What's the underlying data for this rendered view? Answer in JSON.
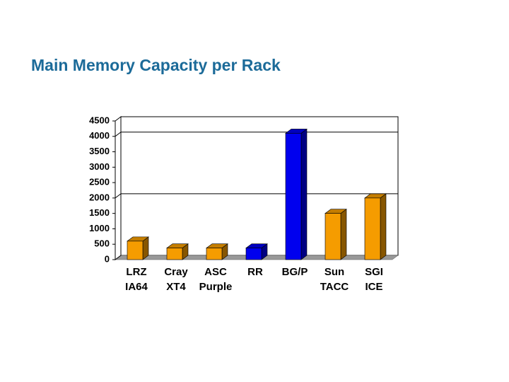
{
  "chart_data": {
    "type": "bar3d",
    "title": "Main Memory Capacity per Rack",
    "categories": [
      [
        "LRZ",
        "IA64"
      ],
      [
        "Cray",
        "XT4"
      ],
      [
        "ASC",
        "Purple"
      ],
      [
        "RR"
      ],
      [
        "BG/P"
      ],
      [
        "Sun",
        "TACC"
      ],
      [
        "SGI",
        "ICE"
      ]
    ],
    "values": [
      600,
      375,
      375,
      375,
      4100,
      1500,
      2000
    ],
    "colors": [
      "#f59c00",
      "#f59c00",
      "#f59c00",
      "#0000ee",
      "#0000ee",
      "#f59c00",
      "#f59c00"
    ],
    "ylim": [
      0,
      4500
    ],
    "yticks": [
      0,
      500,
      1000,
      1500,
      2000,
      2500,
      3000,
      3500,
      4000,
      4500
    ],
    "grid_values": [
      2000,
      4000
    ]
  }
}
